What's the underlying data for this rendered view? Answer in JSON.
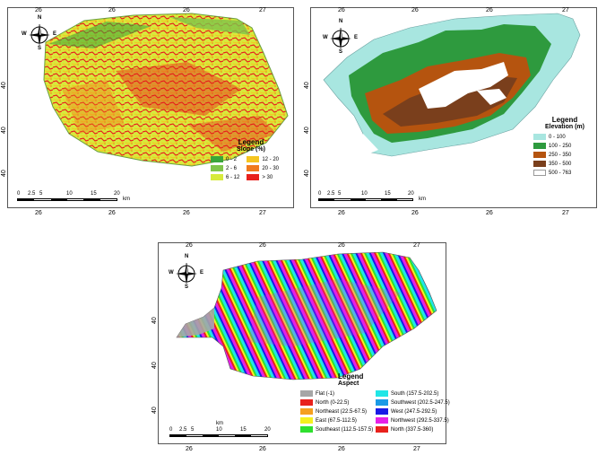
{
  "maps": [
    {
      "id": "slope",
      "legend_title": "Legend",
      "legend_subtitle": "Slope (%)",
      "legend_items": [
        {
          "label": "0 - 2",
          "color": "#3aa63a"
        },
        {
          "label": "2 - 6",
          "color": "#7fc54a"
        },
        {
          "label": "6 - 12",
          "color": "#d7ea3c"
        },
        {
          "label": "12 - 20",
          "color": "#f5c51f"
        },
        {
          "label": "20 - 30",
          "color": "#f07a1d"
        },
        {
          "label": "> 30",
          "color": "#e8211c"
        }
      ],
      "scale_labels": [
        "0",
        "2.5",
        "5",
        "10",
        "15",
        "20"
      ],
      "scale_unit": "km",
      "top_ticks": [
        "26",
        "26",
        "26",
        "27"
      ],
      "bottom_ticks": [
        "26",
        "26",
        "26",
        "27"
      ],
      "left_ticks": [
        "40",
        "40",
        "40"
      ]
    },
    {
      "id": "elevation",
      "legend_title": "Legend",
      "legend_subtitle": "Elevation (m)",
      "legend_items": [
        {
          "label": "0 - 100",
          "color": "#a8e6e0"
        },
        {
          "label": "100 - 250",
          "color": "#2e9a3e"
        },
        {
          "label": "250 - 350",
          "color": "#b5540f"
        },
        {
          "label": "350 - 500",
          "color": "#7a3f1c"
        },
        {
          "label": "500 - 763",
          "color": "#ffffff"
        }
      ],
      "scale_labels": [
        "0",
        "2.5",
        "5",
        "10",
        "15",
        "20"
      ],
      "scale_unit": "km",
      "top_ticks": [
        "26",
        "26",
        "26",
        "27"
      ],
      "bottom_ticks": [
        "26",
        "26",
        "26",
        "27"
      ],
      "left_ticks": [
        "40",
        "40",
        "40"
      ]
    },
    {
      "id": "aspect",
      "legend_title": "Legend",
      "legend_subtitle": "Aspect",
      "legend_items": [
        {
          "label": "Flat (-1)",
          "color": "#a6a6a6"
        },
        {
          "label": "North (0-22.5)",
          "color": "#e8211c"
        },
        {
          "label": "Northeast (22.5-67.5)",
          "color": "#f5a01f"
        },
        {
          "label": "East (67.5-112.5)",
          "color": "#f5f11f"
        },
        {
          "label": "Southeast (112.5-157.5)",
          "color": "#2fe02f"
        },
        {
          "label": "South (157.5-202.5)",
          "color": "#20e6e6"
        },
        {
          "label": "Southwest (202.5-247.5)",
          "color": "#1a9ae6"
        },
        {
          "label": "West (247.5-292.5)",
          "color": "#1a1ae6"
        },
        {
          "label": "Northwest (292.5-337.5)",
          "color": "#e620e6"
        },
        {
          "label": "North (337.5-360)",
          "color": "#e8211c"
        }
      ],
      "scale_labels": [
        "0",
        "2.5",
        "5",
        "10",
        "15",
        "20"
      ],
      "scale_unit": "km",
      "top_ticks": [
        "26",
        "26",
        "26",
        "27"
      ],
      "bottom_ticks": [
        "26",
        "26",
        "26",
        "27"
      ],
      "left_ticks": [
        "40",
        "40",
        "40"
      ]
    }
  ],
  "compass": {
    "n": "N",
    "s": "S",
    "e": "E",
    "w": "W"
  },
  "icons": [
    "compass-rose-icon"
  ]
}
